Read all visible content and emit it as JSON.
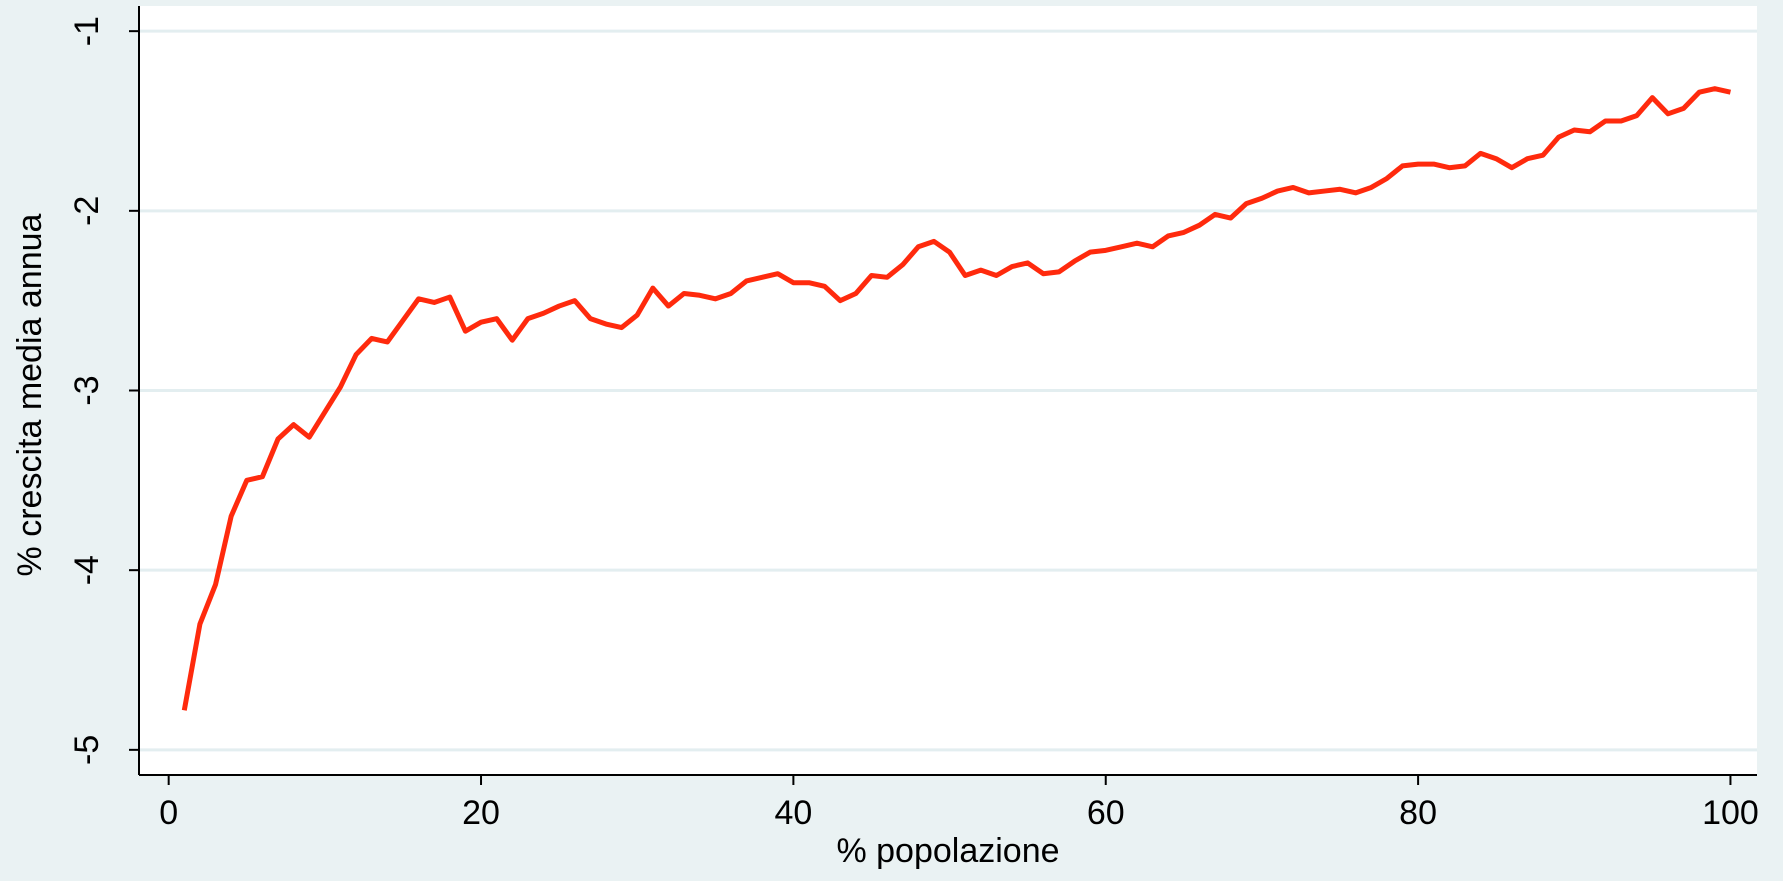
{
  "chart_data": {
    "type": "line",
    "x_label": "% popolazione",
    "y_label": "% crescita media annua",
    "x": [
      1,
      2,
      3,
      4,
      5,
      6,
      7,
      8,
      9,
      10,
      11,
      12,
      13,
      14,
      15,
      16,
      17,
      18,
      19,
      20,
      21,
      22,
      23,
      24,
      25,
      26,
      27,
      28,
      29,
      30,
      31,
      32,
      33,
      34,
      35,
      36,
      37,
      38,
      39,
      40,
      41,
      42,
      43,
      44,
      45,
      46,
      47,
      48,
      49,
      50,
      51,
      52,
      53,
      54,
      55,
      56,
      57,
      58,
      59,
      60,
      61,
      62,
      63,
      64,
      65,
      66,
      67,
      68,
      69,
      70,
      71,
      72,
      73,
      74,
      75,
      76,
      77,
      78,
      79,
      80,
      81,
      82,
      83,
      84,
      85,
      86,
      87,
      88,
      89,
      90,
      91,
      92,
      93,
      94,
      95,
      96,
      97,
      98,
      99,
      100
    ],
    "series": [
      {
        "color": "#ff2a0d",
        "values": [
          -4.78,
          -4.3,
          -4.08,
          -3.7,
          -3.5,
          -3.48,
          -3.27,
          -3.19,
          -3.26,
          -3.12,
          -2.98,
          -2.8,
          -2.71,
          -2.73,
          -2.61,
          -2.49,
          -2.51,
          -2.48,
          -2.67,
          -2.62,
          -2.6,
          -2.72,
          -2.6,
          -2.57,
          -2.53,
          -2.5,
          -2.6,
          -2.63,
          -2.65,
          -2.58,
          -2.43,
          -2.53,
          -2.46,
          -2.47,
          -2.49,
          -2.46,
          -2.39,
          -2.37,
          -2.35,
          -2.4,
          -2.4,
          -2.42,
          -2.5,
          -2.46,
          -2.36,
          -2.37,
          -2.3,
          -2.2,
          -2.17,
          -2.23,
          -2.36,
          -2.33,
          -2.36,
          -2.31,
          -2.29,
          -2.35,
          -2.34,
          -2.28,
          -2.23,
          -2.22,
          -2.2,
          -2.18,
          -2.2,
          -2.14,
          -2.12,
          -2.08,
          -2.02,
          -2.04,
          -1.96,
          -1.93,
          -1.89,
          -1.87,
          -1.9,
          -1.89,
          -1.88,
          -1.9,
          -1.87,
          -1.82,
          -1.75,
          -1.74,
          -1.74,
          -1.76,
          -1.75,
          -1.68,
          -1.71,
          -1.76,
          -1.71,
          -1.69,
          -1.59,
          -1.55,
          -1.56,
          -1.5,
          -1.5,
          -1.47,
          -1.37,
          -1.46,
          -1.43,
          -1.34,
          -1.32,
          -1.34
        ]
      }
    ],
    "xlim": [
      -1.9,
      101.7
    ],
    "xticks": [
      0,
      20,
      40,
      60,
      80,
      100
    ],
    "ylim": [
      -5.14,
      -0.86
    ],
    "yticks": [
      -5,
      -4,
      -3,
      -2,
      -1
    ],
    "grid": true
  }
}
